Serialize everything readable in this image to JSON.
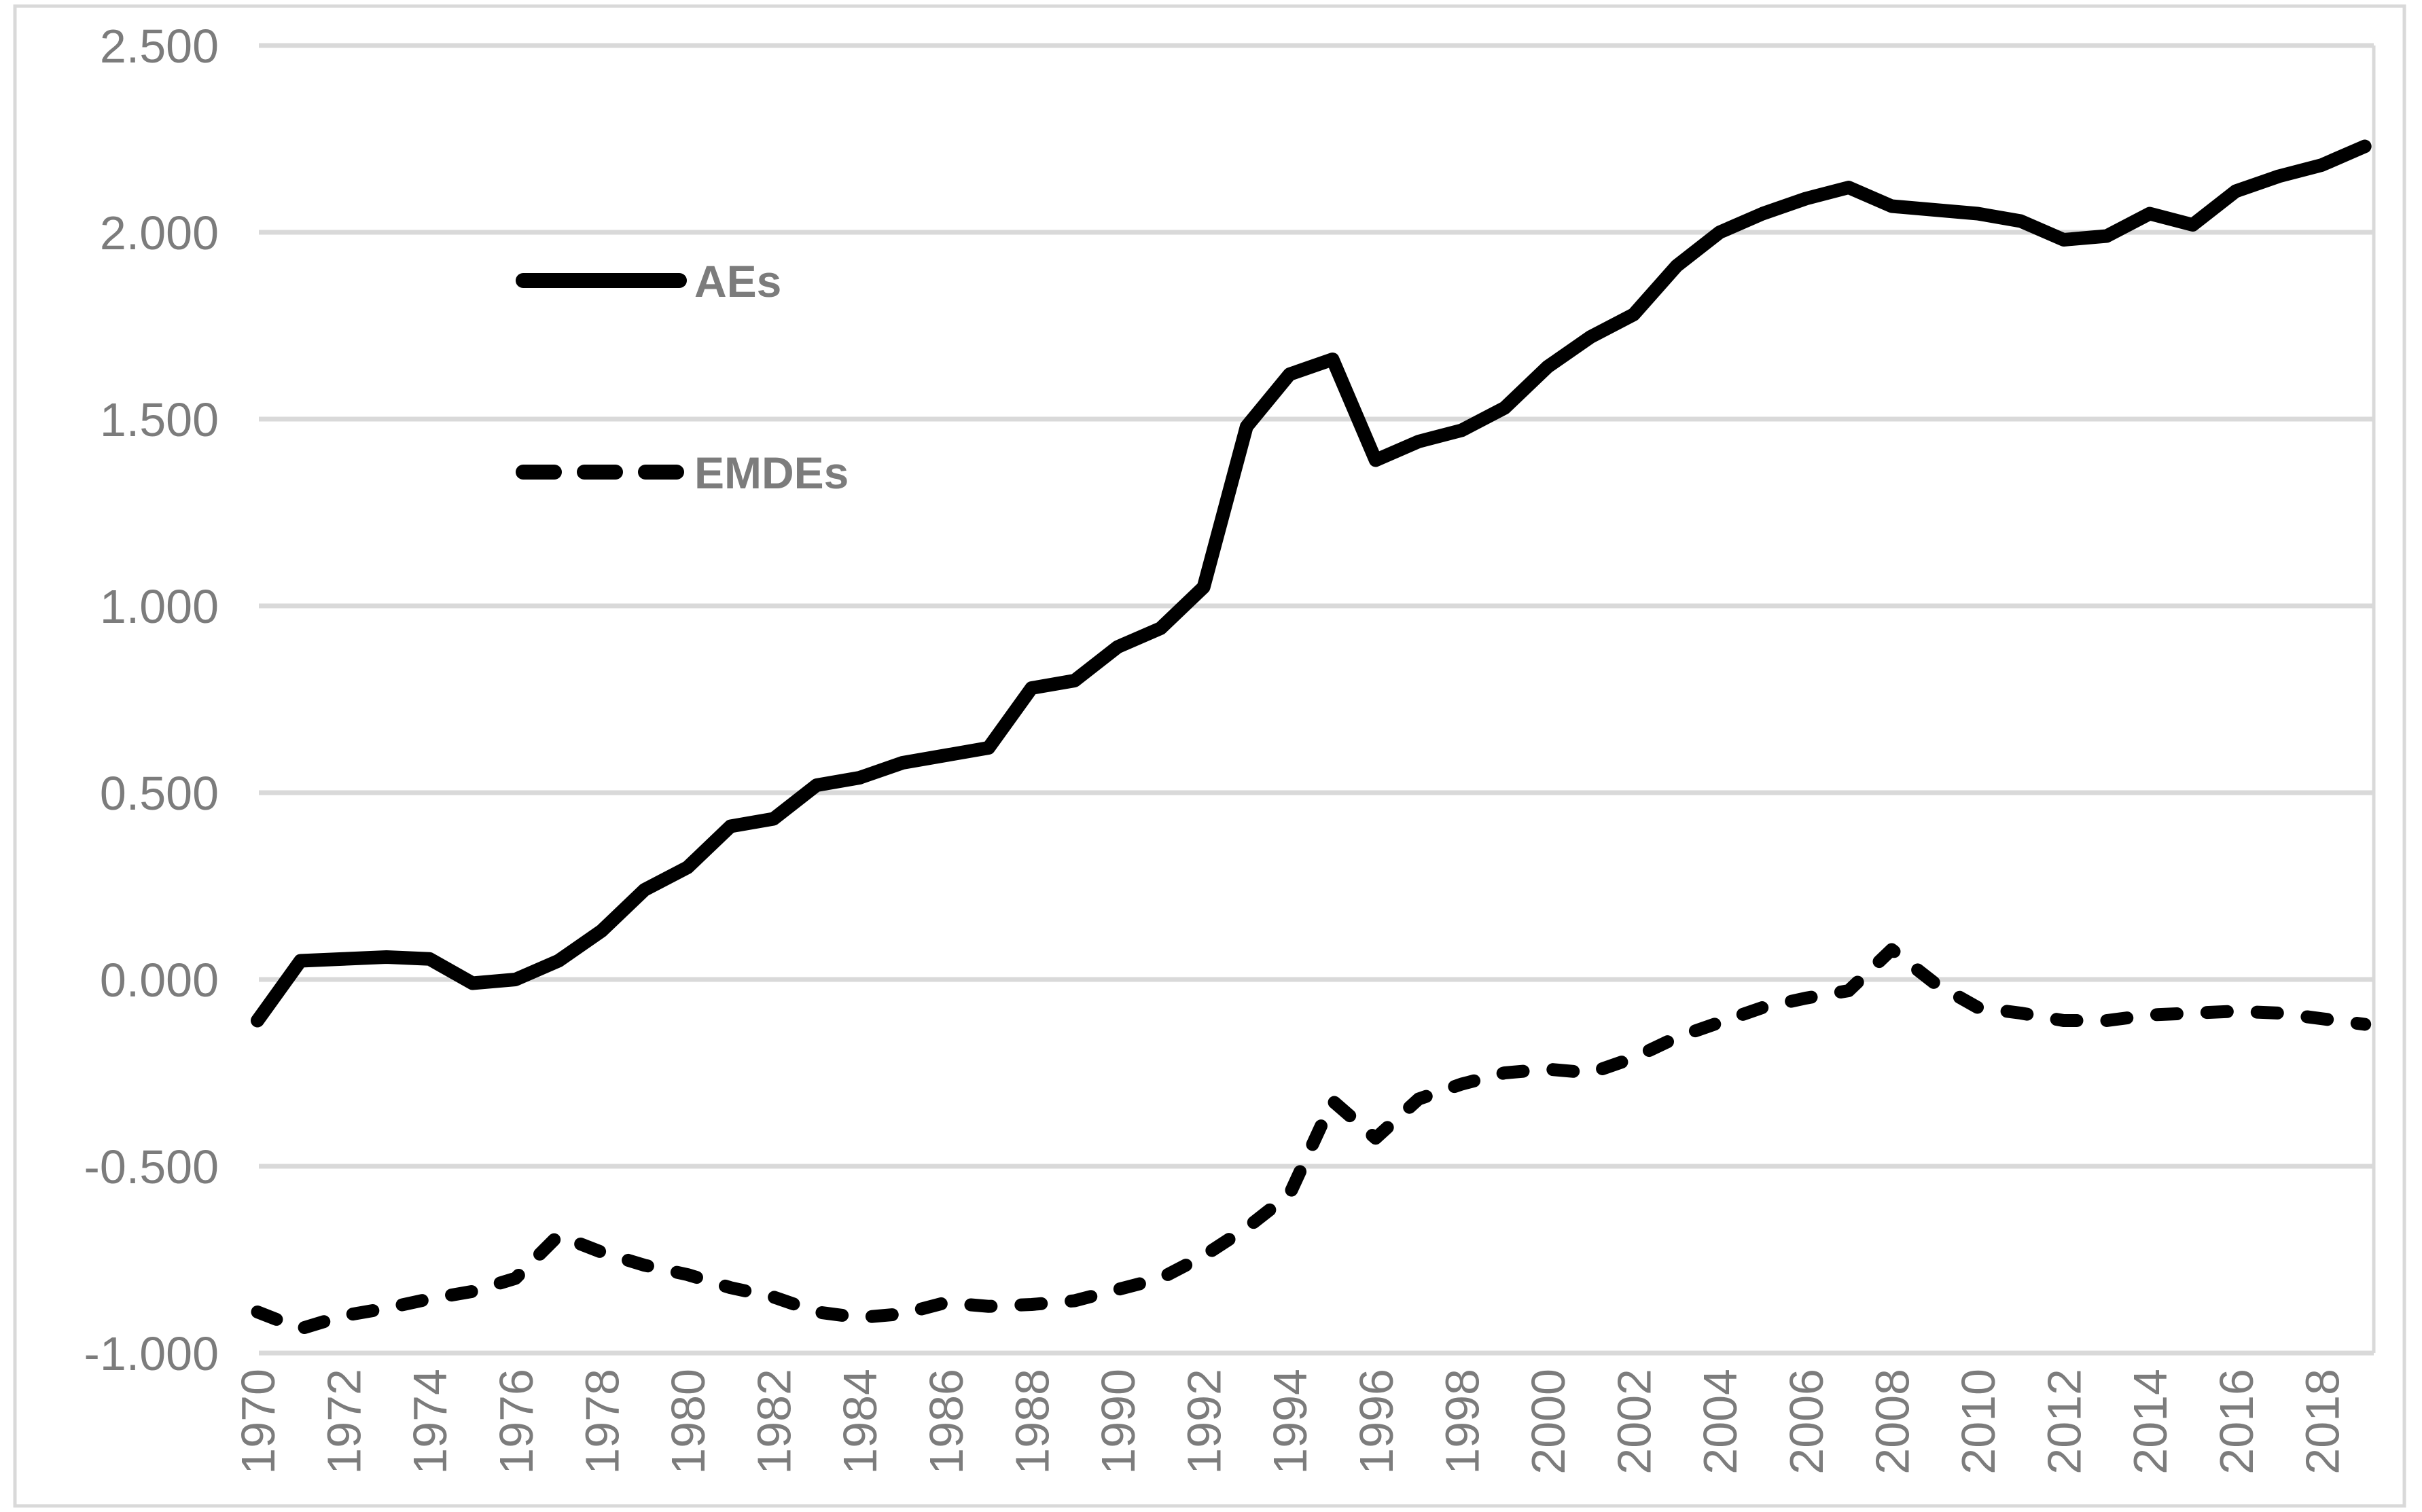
{
  "chart_data": {
    "type": "line",
    "title": "",
    "x": [
      1970,
      1971,
      1972,
      1973,
      1974,
      1975,
      1976,
      1977,
      1978,
      1979,
      1980,
      1981,
      1982,
      1983,
      1984,
      1985,
      1986,
      1987,
      1988,
      1989,
      1990,
      1991,
      1992,
      1993,
      1994,
      1995,
      1996,
      1997,
      1998,
      1999,
      2000,
      2001,
      2002,
      2003,
      2004,
      2005,
      2006,
      2007,
      2008,
      2009,
      2010,
      2011,
      2012,
      2013,
      2014,
      2015,
      2016,
      2017,
      2018,
      2019
    ],
    "series": [
      {
        "name": "AEs",
        "line_style": "solid",
        "color": "#000000",
        "values": [
          -0.11,
          0.05,
          0.055,
          0.06,
          0.055,
          -0.01,
          0.0,
          0.05,
          0.13,
          0.24,
          0.3,
          0.41,
          0.43,
          0.52,
          0.54,
          0.58,
          0.6,
          0.62,
          0.78,
          0.8,
          0.89,
          0.94,
          1.05,
          1.48,
          1.62,
          1.66,
          1.39,
          1.44,
          1.47,
          1.53,
          1.64,
          1.72,
          1.78,
          1.91,
          2.0,
          2.05,
          2.09,
          2.12,
          2.07,
          2.06,
          2.05,
          2.03,
          1.98,
          1.99,
          2.05,
          2.02,
          2.11,
          2.15,
          2.18,
          2.23
        ]
      },
      {
        "name": "EMDEs",
        "line_style": "dashed",
        "color": "#000000",
        "values": [
          -0.89,
          -0.935,
          -0.9,
          -0.88,
          -0.855,
          -0.835,
          -0.8,
          -0.685,
          -0.73,
          -0.765,
          -0.79,
          -0.825,
          -0.85,
          -0.89,
          -0.905,
          -0.895,
          -0.865,
          -0.875,
          -0.87,
          -0.86,
          -0.83,
          -0.8,
          -0.74,
          -0.665,
          -0.575,
          -0.325,
          -0.425,
          -0.32,
          -0.28,
          -0.25,
          -0.24,
          -0.25,
          -0.21,
          -0.155,
          -0.115,
          -0.075,
          -0.05,
          -0.03,
          0.08,
          -0.01,
          -0.075,
          -0.09,
          -0.11,
          -0.11,
          -0.095,
          -0.09,
          -0.085,
          -0.09,
          -0.105,
          -0.12
        ]
      }
    ],
    "xtick_labels": [
      "1970",
      "1972",
      "1974",
      "1976",
      "1978",
      "1980",
      "1982",
      "1984",
      "1986",
      "1988",
      "1990",
      "1992",
      "1994",
      "1996",
      "1998",
      "2000",
      "2002",
      "2004",
      "2006",
      "2008",
      "2010",
      "2012",
      "2014",
      "2016",
      "2018"
    ],
    "ytick_labels": [
      "2.500",
      "2.000",
      "1.500",
      "1.000",
      "0.500",
      "0.000",
      "-0.500",
      "-1.000"
    ],
    "ylim": [
      -1.0,
      2.5
    ],
    "ytick_step": 0.5,
    "grid": "horizontal",
    "legend_position": "inside-upper-left",
    "legend_items": [
      "AEs",
      "EMDEs"
    ],
    "colors": {
      "series_line": "#000000",
      "gridline": "#d9d9d9",
      "tick_text": "#7c7c7c",
      "legend_text": "#7c7c7c",
      "figure_border": "#d9d9d9",
      "background": "#ffffff"
    }
  }
}
